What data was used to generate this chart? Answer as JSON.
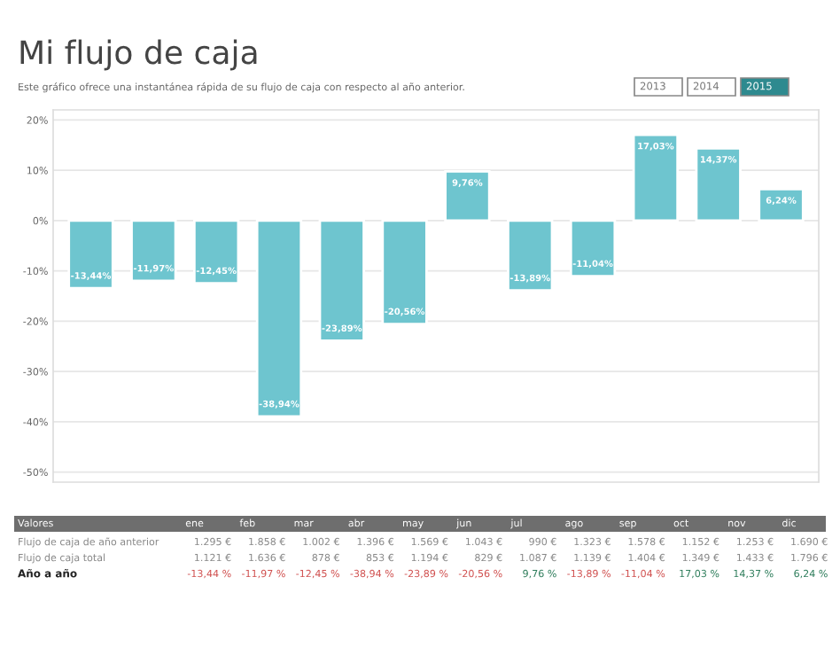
{
  "chart_data": {
    "type": "bar",
    "title": "Mi flujo de caja",
    "subtitle": "Este gráfico ofrece una instantánea rápida de su flujo de caja con respecto al año anterior.",
    "categories": [
      null,
      null,
      null,
      null,
      null,
      null,
      null,
      null,
      null,
      null,
      null,
      null
    ],
    "values": [
      -13.44,
      -11.97,
      -12.45,
      -38.94,
      -23.89,
      -20.56,
      9.76,
      -13.89,
      -11.04,
      17.03,
      14.37,
      6.24
    ],
    "value_labels": [
      "-13,44%",
      "-11,97%",
      "-12,45%",
      "-38,94%",
      "-23,89%",
      "-20,56%",
      "9,76%",
      "-13,89%",
      "-11,04%",
      "17,03%",
      "14,37%",
      "6,24%"
    ],
    "color": "#6ec5cf",
    "ylim": [
      -52,
      22
    ],
    "yticks": [
      {
        "value": -50,
        "label": "-50%"
      },
      {
        "value": -40,
        "label": "-40%"
      },
      {
        "value": -30,
        "label": "-30%"
      },
      {
        "value": -20,
        "label": "-20%"
      },
      {
        "value": -10,
        "label": "-10%"
      },
      {
        "value": 0,
        "label": "0%"
      },
      {
        "value": 10,
        "label": "10%"
      },
      {
        "value": 20,
        "label": "20%"
      }
    ],
    "grid": "y",
    "annotations": [
      "2013",
      "2014",
      "2015",
      "Valores",
      "ene",
      "feb",
      "mar",
      "abr",
      "may",
      "jun",
      "jul",
      "ago",
      "sep",
      "oct",
      "nov",
      "dic",
      "Flujo de caja de año anterior",
      "1.295 €",
      "1.858 €",
      "1.002 €",
      "1.396 €",
      "1.569 €",
      "1.043 €",
      "990 €",
      "1.323 €",
      "1.578 €",
      "1.152 €",
      "1.253 €",
      "1.690 €",
      "Flujo de caja total",
      "1.121 €",
      "1.636 €",
      "878 €",
      "853 €",
      "1.194 €",
      "829 €",
      "1.087 €",
      "1.139 €",
      "1.404 €",
      "1.349 €",
      "1.433 €",
      "1.796 €",
      "Año a año",
      "-13,44 %",
      "-11,97 %",
      "-12,45 %",
      "-38,94 %",
      "-23,89 %",
      "-20,56 %",
      "9,76 %",
      "-13,89 %",
      "-11,04 %",
      "17,03 %",
      "14,37 %",
      "6,24 %"
    ]
  }
}
